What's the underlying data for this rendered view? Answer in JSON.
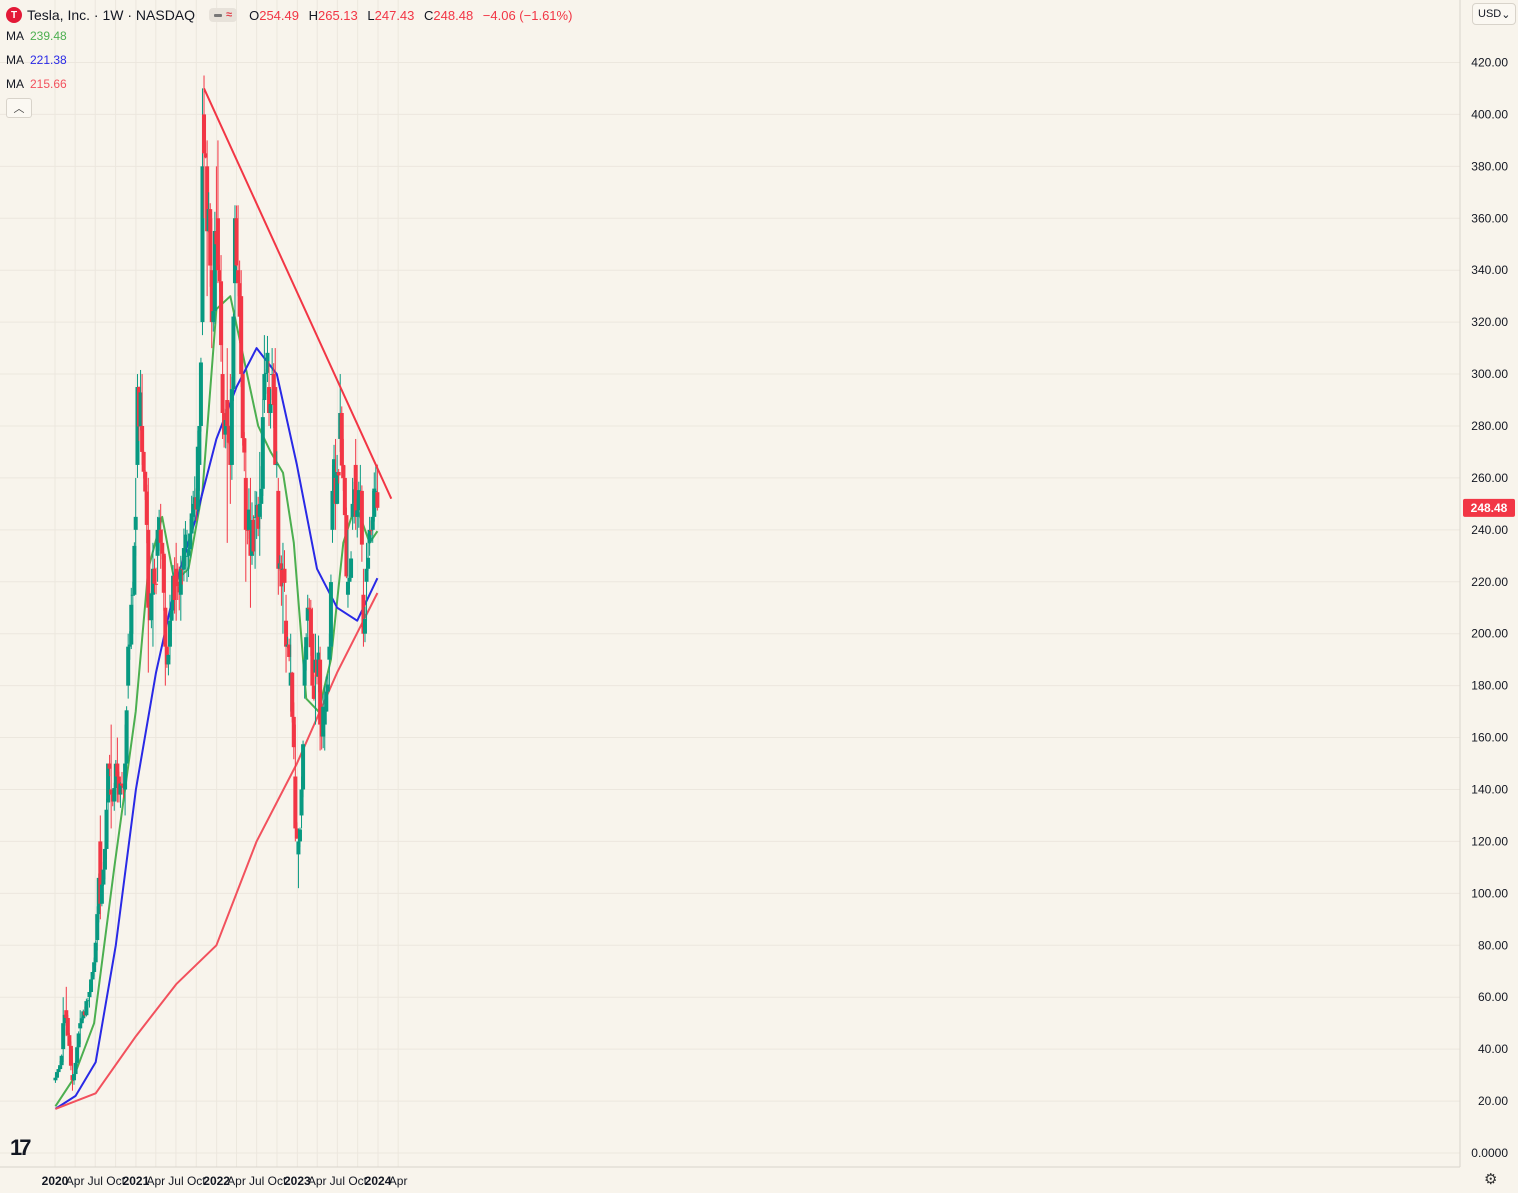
{
  "header": {
    "symbol": "Tesla, Inc. · 1W · NASDAQ",
    "logo_letter": "T",
    "ohlc": {
      "o_label": "O",
      "o": "254.49",
      "h_label": "H",
      "h": "265.13",
      "l_label": "L",
      "l": "247.43",
      "c_label": "C",
      "c": "248.48",
      "change": "−4.06 (−1.61%)"
    },
    "ma": [
      {
        "label": "MA",
        "value": "239.48",
        "color": "#4caf50"
      },
      {
        "label": "MA",
        "value": "221.38",
        "color": "#2929e6"
      },
      {
        "label": "MA",
        "value": "215.66",
        "color": "#f2515d"
      }
    ],
    "collapse_icon": "chevron-up-icon",
    "currency": "USD",
    "price_tag": "248.48"
  },
  "colors": {
    "up": "#089981",
    "down": "#f23645",
    "background": "#f8f4ec",
    "trendline": "#f23645",
    "grid": "#ece7de"
  },
  "chart_data": {
    "type": "candlestick",
    "interval": "1W",
    "y_axis": {
      "min": 0,
      "max": 420,
      "ticks": [
        "420.00",
        "400.00",
        "380.00",
        "360.00",
        "340.00",
        "320.00",
        "300.00",
        "280.00",
        "260.00",
        "240.00",
        "220.00",
        "200.00",
        "180.00",
        "160.00",
        "140.00",
        "120.00",
        "100.00",
        "80.00",
        "60.00",
        "40.00",
        "20.00",
        "0.0000"
      ],
      "position": "right"
    },
    "x_axis": {
      "ticks": [
        "2020",
        "Apr",
        "Jul",
        "Oct",
        "2021",
        "Apr",
        "Jul",
        "Oct",
        "2022",
        "Apr",
        "Jul",
        "Oct",
        "2023",
        "Apr",
        "Jul",
        "Oct",
        "2024",
        "Apr"
      ],
      "bold_ticks": [
        "2020",
        "2021",
        "2022",
        "2023",
        "2024"
      ],
      "start": "2020-01-01",
      "end": "2024-06-01"
    },
    "anchors": [
      [
        "2020-01-03",
        28,
        30,
        27,
        29
      ],
      [
        "2020-02-07",
        40,
        60,
        35,
        50
      ],
      [
        "2020-02-21",
        55,
        64,
        45,
        52
      ],
      [
        "2020-03-20",
        30,
        40,
        24,
        28
      ],
      [
        "2020-04-24",
        48,
        55,
        42,
        50
      ],
      [
        "2020-06-05",
        60,
        65,
        56,
        62
      ],
      [
        "2020-07-10",
        82,
        95,
        78,
        92
      ],
      [
        "2020-07-24",
        120,
        130,
        90,
        96
      ],
      [
        "2020-08-28",
        135,
        150,
        120,
        150
      ],
      [
        "2020-09-11",
        140,
        165,
        125,
        138
      ],
      [
        "2020-10-09",
        150,
        160,
        135,
        145
      ],
      [
        "2020-11-13",
        140,
        165,
        130,
        150
      ],
      [
        "2020-11-27",
        180,
        200,
        175,
        195
      ],
      [
        "2020-12-18",
        215,
        220,
        200,
        215
      ],
      [
        "2020-12-31",
        240,
        260,
        230,
        245
      ],
      [
        "2021-01-08",
        265,
        300,
        260,
        295
      ],
      [
        "2021-01-29",
        280,
        300,
        265,
        270
      ],
      [
        "2021-02-26",
        240,
        260,
        185,
        210
      ],
      [
        "2021-03-19",
        215,
        235,
        195,
        225
      ],
      [
        "2021-04-09",
        230,
        245,
        220,
        240
      ],
      [
        "2021-04-23",
        240,
        250,
        225,
        235
      ],
      [
        "2021-05-14",
        210,
        230,
        180,
        195
      ],
      [
        "2021-06-04",
        195,
        215,
        190,
        205
      ],
      [
        "2021-07-02",
        225,
        235,
        205,
        220
      ],
      [
        "2021-07-23",
        215,
        230,
        205,
        225
      ],
      [
        "2021-08-20",
        230,
        240,
        220,
        230
      ],
      [
        "2021-09-17",
        245,
        255,
        240,
        250
      ],
      [
        "2021-10-15",
        265,
        275,
        255,
        280
      ],
      [
        "2021-10-29",
        320,
        410,
        315,
        380
      ],
      [
        "2021-11-05",
        400,
        415,
        360,
        385
      ],
      [
        "2021-11-19",
        380,
        390,
        330,
        355
      ],
      [
        "2021-12-10",
        340,
        360,
        310,
        320
      ],
      [
        "2021-12-31",
        355,
        380,
        340,
        350
      ],
      [
        "2022-01-07",
        360,
        390,
        335,
        340
      ],
      [
        "2022-01-28",
        300,
        330,
        275,
        285
      ],
      [
        "2022-02-18",
        290,
        310,
        235,
        280
      ],
      [
        "2022-03-04",
        275,
        300,
        250,
        265
      ],
      [
        "2022-03-25",
        335,
        365,
        320,
        360
      ],
      [
        "2022-04-08",
        340,
        365,
        330,
        335
      ],
      [
        "2022-04-22",
        330,
        340,
        295,
        300
      ],
      [
        "2022-05-13",
        260,
        275,
        220,
        240
      ],
      [
        "2022-06-03",
        240,
        260,
        210,
        230
      ],
      [
        "2022-06-24",
        245,
        255,
        225,
        245
      ],
      [
        "2022-07-15",
        245,
        270,
        230,
        250
      ],
      [
        "2022-08-05",
        290,
        315,
        285,
        300
      ],
      [
        "2022-08-26",
        295,
        305,
        280,
        285
      ],
      [
        "2022-09-09",
        300,
        310,
        290,
        300
      ],
      [
        "2022-09-23",
        295,
        310,
        265,
        265
      ],
      [
        "2022-10-07",
        255,
        260,
        215,
        225
      ],
      [
        "2022-10-28",
        225,
        235,
        200,
        225
      ],
      [
        "2022-11-11",
        205,
        215,
        185,
        195
      ],
      [
        "2022-12-02",
        180,
        200,
        170,
        185
      ],
      [
        "2022-12-23",
        145,
        165,
        120,
        125
      ],
      [
        "2023-01-06",
        115,
        125,
        102,
        120
      ],
      [
        "2023-01-20",
        130,
        145,
        125,
        140
      ],
      [
        "2023-02-03",
        180,
        195,
        175,
        190
      ],
      [
        "2023-02-17",
        205,
        215,
        195,
        210
      ],
      [
        "2023-03-10",
        200,
        210,
        175,
        180
      ],
      [
        "2023-03-24",
        185,
        200,
        165,
        190
      ],
      [
        "2023-04-14",
        190,
        195,
        155,
        165
      ],
      [
        "2023-05-05",
        165,
        180,
        155,
        170
      ],
      [
        "2023-05-26",
        190,
        200,
        180,
        195
      ],
      [
        "2023-06-09",
        240,
        265,
        235,
        255
      ],
      [
        "2023-06-23",
        260,
        275,
        240,
        250
      ],
      [
        "2023-07-14",
        275,
        300,
        270,
        285
      ],
      [
        "2023-07-28",
        265,
        275,
        255,
        260
      ],
      [
        "2023-08-18",
        215,
        240,
        210,
        220
      ],
      [
        "2023-09-08",
        245,
        260,
        240,
        250
      ],
      [
        "2023-09-22",
        265,
        275,
        240,
        245
      ],
      [
        "2023-10-13",
        255,
        265,
        240,
        255
      ],
      [
        "2023-10-27",
        215,
        225,
        195,
        200
      ],
      [
        "2023-11-10",
        220,
        235,
        205,
        225
      ],
      [
        "2023-11-24",
        235,
        245,
        230,
        240
      ],
      [
        "2023-12-08",
        240,
        255,
        235,
        245
      ],
      [
        "2023-12-22",
        255,
        265,
        250,
        255
      ],
      [
        "2023-12-29",
        254.49,
        265.13,
        247.43,
        248.48
      ]
    ],
    "ma_series": [
      {
        "name": "MA",
        "value": 239.48,
        "color": "#4caf50",
        "points": [
          [
            "2020-01-03",
            18
          ],
          [
            "2020-03-20",
            28
          ],
          [
            "2020-06-26",
            50
          ],
          [
            "2020-09-25",
            110
          ],
          [
            "2020-12-31",
            170
          ],
          [
            "2021-02-26",
            225
          ],
          [
            "2021-04-30",
            245
          ],
          [
            "2021-06-25",
            220
          ],
          [
            "2021-08-27",
            225
          ],
          [
            "2021-10-29",
            255
          ],
          [
            "2021-12-31",
            325
          ],
          [
            "2022-03-04",
            330
          ],
          [
            "2022-05-06",
            305
          ],
          [
            "2022-07-08",
            280
          ],
          [
            "2022-09-02",
            270
          ],
          [
            "2022-10-28",
            262
          ],
          [
            "2022-12-16",
            235
          ],
          [
            "2023-02-10",
            175
          ],
          [
            "2023-04-07",
            170
          ],
          [
            "2023-06-02",
            190
          ],
          [
            "2023-07-28",
            235
          ],
          [
            "2023-09-22",
            250
          ],
          [
            "2023-11-24",
            235
          ],
          [
            "2023-12-29",
            239.48
          ]
        ]
      },
      {
        "name": "MA",
        "value": 221.38,
        "color": "#2929e6",
        "points": [
          [
            "2020-01-03",
            17
          ],
          [
            "2020-04-03",
            22
          ],
          [
            "2020-07-03",
            35
          ],
          [
            "2020-10-02",
            80
          ],
          [
            "2021-01-01",
            140
          ],
          [
            "2021-04-02",
            185
          ],
          [
            "2021-07-02",
            220
          ],
          [
            "2021-10-01",
            245
          ],
          [
            "2021-12-31",
            275
          ],
          [
            "2022-04-01",
            295
          ],
          [
            "2022-07-01",
            310
          ],
          [
            "2022-09-30",
            300
          ],
          [
            "2022-12-30",
            265
          ],
          [
            "2023-03-31",
            225
          ],
          [
            "2023-06-30",
            210
          ],
          [
            "2023-09-29",
            205
          ],
          [
            "2023-12-29",
            221.38
          ]
        ]
      },
      {
        "name": "MA",
        "value": 215.66,
        "color": "#f2515d",
        "points": [
          [
            "2020-01-03",
            17
          ],
          [
            "2020-07-03",
            23
          ],
          [
            "2021-01-01",
            45
          ],
          [
            "2021-07-02",
            65
          ],
          [
            "2021-12-31",
            80
          ],
          [
            "2022-07-01",
            120
          ],
          [
            "2022-12-30",
            150
          ],
          [
            "2023-06-30",
            185
          ],
          [
            "2023-12-29",
            215.66
          ]
        ]
      }
    ],
    "trendline": {
      "from": [
        "2021-11-05",
        410
      ],
      "to": [
        "2024-03-01",
        252
      ]
    },
    "price_label": 248.48,
    "grid": true
  }
}
